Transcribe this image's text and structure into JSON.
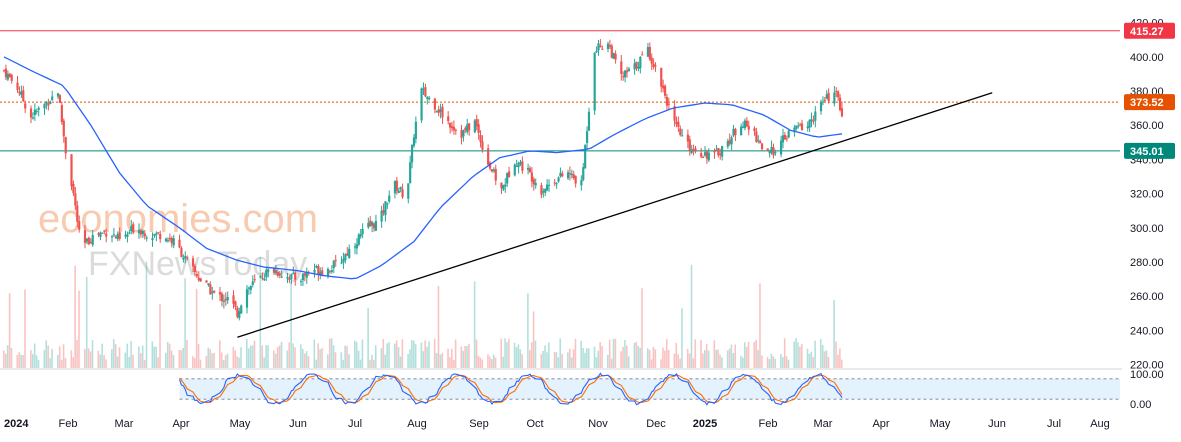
{
  "watermark": {
    "brand": "economies.com",
    "sub": "FXNewsToday"
  },
  "colors": {
    "up": "#26a69a",
    "down": "#ef5350",
    "ma": "#2962ff",
    "resistance": "#f23645",
    "dotted": "#e65100",
    "support": "#00897b",
    "trend": "#000000",
    "stoch_k": "#2962ff",
    "stoch_d": "#ff6d00",
    "stoch_band": "#e3f2fd"
  },
  "chart_data": {
    "type": "candlestick",
    "symbol_levels": [
      {
        "label": "415.27",
        "value": 415.27,
        "style": "solid",
        "color": "#f23645"
      },
      {
        "label": "373.52",
        "value": 373.52,
        "style": "dotted",
        "color": "#e65100"
      },
      {
        "label": "345.01",
        "value": 345.01,
        "style": "solid",
        "color": "#00897b"
      }
    ],
    "y_axis": {
      "ticks": [
        "420.00",
        "400.00",
        "380.00",
        "360.00",
        "340.00",
        "320.00",
        "300.00",
        "280.00",
        "260.00",
        "240.00",
        "220.00"
      ],
      "range": [
        218,
        428
      ]
    },
    "x_axis": {
      "ticks": [
        "2024",
        "Feb",
        "Mar",
        "Apr",
        "May",
        "Jun",
        "Jul",
        "Aug",
        "Sep",
        "Oct",
        "Nov",
        "Dec",
        "2025",
        "Feb",
        "Mar",
        "Apr",
        "May",
        "Jun",
        "Jul",
        "Aug"
      ],
      "bold_ticks": [
        "2024",
        "2025"
      ]
    },
    "price_anchors": [
      [
        "2024-01-01",
        392
      ],
      [
        "2024-01-08",
        382
      ],
      [
        "2024-01-15",
        365
      ],
      [
        "2024-01-22",
        372
      ],
      [
        "2024-01-29",
        380
      ],
      [
        "2024-02-02",
        345
      ],
      [
        "2024-02-06",
        320
      ],
      [
        "2024-02-10",
        288
      ],
      [
        "2024-02-17",
        296
      ],
      [
        "2024-02-24",
        298
      ],
      [
        "2024-03-02",
        292
      ],
      [
        "2024-03-09",
        301
      ],
      [
        "2024-03-16",
        296
      ],
      [
        "2024-03-23",
        296
      ],
      [
        "2024-03-30",
        291
      ],
      [
        "2024-04-06",
        278
      ],
      [
        "2024-04-13",
        268
      ],
      [
        "2024-04-20",
        260
      ],
      [
        "2024-04-27",
        258
      ],
      [
        "2024-05-01",
        250
      ],
      [
        "2024-05-05",
        263
      ],
      [
        "2024-05-12",
        270
      ],
      [
        "2024-05-19",
        276
      ],
      [
        "2024-05-26",
        272
      ],
      [
        "2024-06-02",
        270
      ],
      [
        "2024-06-09",
        276
      ],
      [
        "2024-06-16",
        275
      ],
      [
        "2024-06-23",
        280
      ],
      [
        "2024-06-30",
        290
      ],
      [
        "2024-07-07",
        300
      ],
      [
        "2024-07-14",
        304
      ],
      [
        "2024-07-21",
        326
      ],
      [
        "2024-07-28",
        318
      ],
      [
        "2024-08-01",
        355
      ],
      [
        "2024-08-05",
        380
      ],
      [
        "2024-08-12",
        372
      ],
      [
        "2024-08-19",
        362
      ],
      [
        "2024-08-26",
        355
      ],
      [
        "2024-09-02",
        362
      ],
      [
        "2024-09-09",
        338
      ],
      [
        "2024-09-16",
        322
      ],
      [
        "2024-09-23",
        340
      ],
      [
        "2024-09-30",
        333
      ],
      [
        "2024-10-07",
        322
      ],
      [
        "2024-10-14",
        328
      ],
      [
        "2024-10-21",
        332
      ],
      [
        "2024-10-28",
        325
      ],
      [
        "2024-11-01",
        370
      ],
      [
        "2024-11-04",
        405
      ],
      [
        "2024-11-11",
        408
      ],
      [
        "2024-11-18",
        388
      ],
      [
        "2024-11-25",
        394
      ],
      [
        "2024-12-02",
        404
      ],
      [
        "2024-12-09",
        385
      ],
      [
        "2024-12-16",
        360
      ],
      [
        "2024-12-23",
        348
      ],
      [
        "2024-12-30",
        344
      ],
      [
        "2025-01-06",
        342
      ],
      [
        "2025-01-13",
        350
      ],
      [
        "2025-01-20",
        362
      ],
      [
        "2025-01-27",
        355
      ],
      [
        "2025-02-03",
        342
      ],
      [
        "2025-02-10",
        350
      ],
      [
        "2025-02-17",
        358
      ],
      [
        "2025-02-24",
        360
      ],
      [
        "2025-03-03",
        372
      ],
      [
        "2025-03-10",
        380
      ],
      [
        "2025-03-14",
        368
      ]
    ],
    "ma_anchors": [
      [
        "2024-01-01",
        400
      ],
      [
        "2024-01-15",
        392
      ],
      [
        "2024-02-01",
        383
      ],
      [
        "2024-02-15",
        360
      ],
      [
        "2024-03-01",
        332
      ],
      [
        "2024-03-15",
        313
      ],
      [
        "2024-04-01",
        300
      ],
      [
        "2024-04-15",
        288
      ],
      [
        "2024-05-01",
        281
      ],
      [
        "2024-05-15",
        277
      ],
      [
        "2024-06-01",
        275
      ],
      [
        "2024-06-15",
        272
      ],
      [
        "2024-07-01",
        270
      ],
      [
        "2024-07-15",
        278
      ],
      [
        "2024-08-01",
        292
      ],
      [
        "2024-08-15",
        312
      ],
      [
        "2024-09-01",
        330
      ],
      [
        "2024-09-15",
        341
      ],
      [
        "2024-10-01",
        345
      ],
      [
        "2024-10-15",
        344
      ],
      [
        "2024-11-01",
        346
      ],
      [
        "2024-11-15",
        355
      ],
      [
        "2024-12-01",
        364
      ],
      [
        "2024-12-15",
        370
      ],
      [
        "2025-01-01",
        373
      ],
      [
        "2025-01-15",
        372
      ],
      [
        "2025-02-01",
        366
      ],
      [
        "2025-02-15",
        357
      ],
      [
        "2025-03-01",
        353
      ],
      [
        "2025-03-14",
        355
      ]
    ],
    "trendline": {
      "start": [
        "2024-05-01",
        236
      ],
      "end": [
        "2025-06-01",
        379
      ]
    },
    "stochastic": {
      "upper": 80,
      "lower": 20,
      "ticks": [
        "100.00",
        "0.00"
      ]
    }
  }
}
